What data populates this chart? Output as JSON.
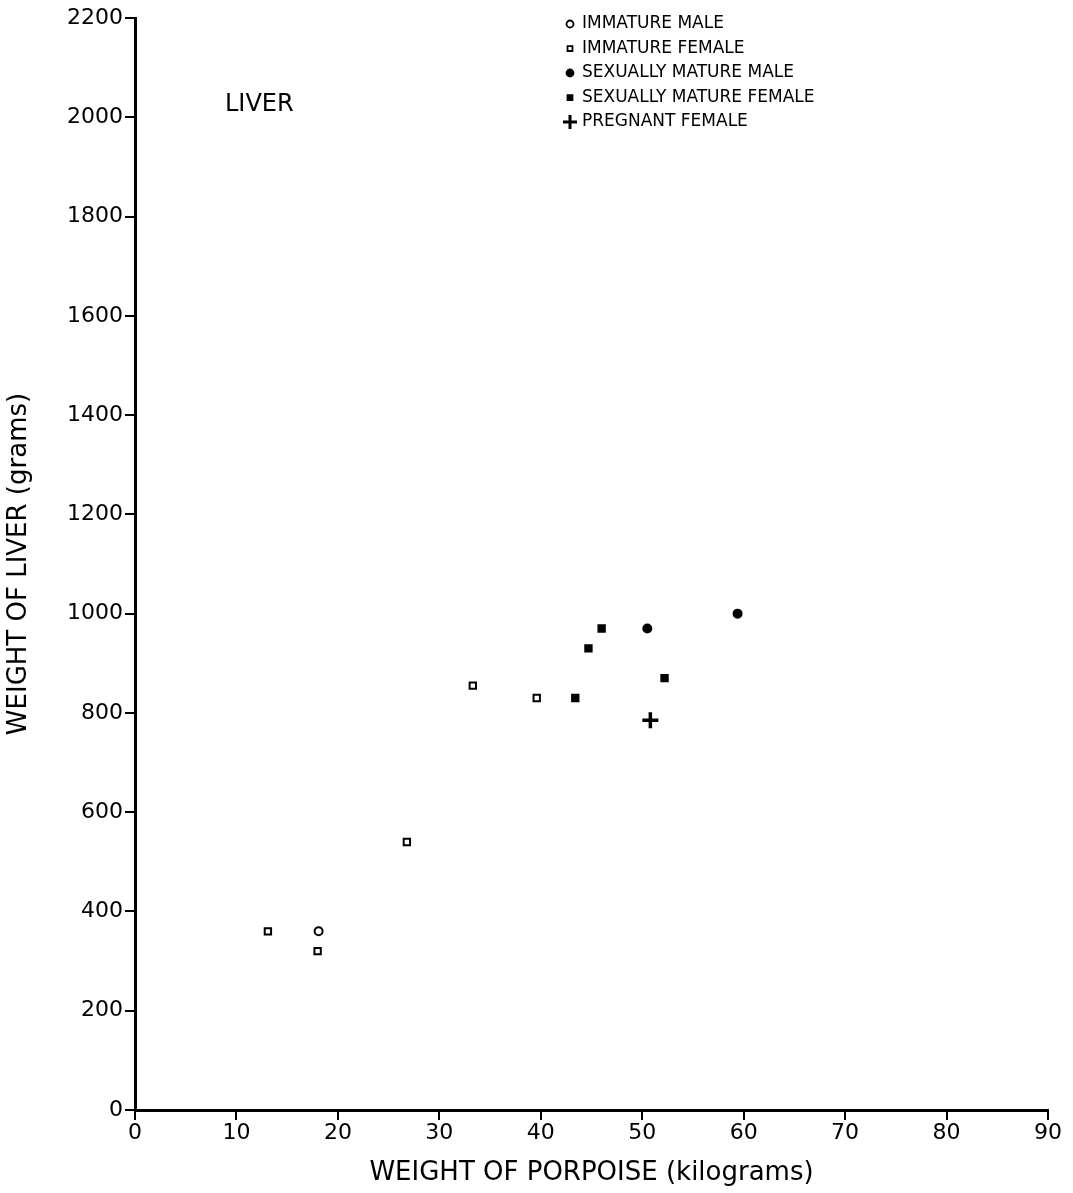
{
  "chart_data": {
    "type": "scatter",
    "title": "LIVER",
    "xlabel": "WEIGHT OF PORPOISE (kilograms)",
    "ylabel": "WEIGHT OF LIVER (grams)",
    "xlim": [
      0,
      90
    ],
    "xticks": [
      0,
      10,
      20,
      30,
      40,
      50,
      60,
      70,
      80,
      90
    ],
    "ylim": [
      0,
      2200
    ],
    "yticks": [
      0,
      200,
      400,
      600,
      800,
      1000,
      1200,
      1400,
      1600,
      1800,
      2000,
      2200
    ],
    "grid": false,
    "legend": "top right",
    "series": [
      {
        "name": "IMMATURE MALE",
        "color": "#000000",
        "marker": "circle-open",
        "x": [
          18.1
        ],
        "values": [
          360
        ]
      },
      {
        "name": "IMMATURE FEMALE",
        "color": "#000000",
        "marker": "square-open",
        "x": [
          13.1,
          18.0,
          26.8,
          33.3,
          39.6
        ],
        "values": [
          360,
          320,
          540,
          855,
          830
        ]
      },
      {
        "name": "SEXUALLY MATURE MALE",
        "color": "#000000",
        "marker": "circle",
        "x": [
          50.5,
          59.4
        ],
        "values": [
          970,
          1000
        ]
      },
      {
        "name": "SEXUALLY MATURE FEMALE",
        "color": "#000000",
        "marker": "square",
        "x": [
          43.4,
          44.7,
          46.0,
          52.2
        ],
        "values": [
          830,
          930,
          970,
          870
        ]
      },
      {
        "name": "PREGNANT FEMALE",
        "color": "#000000",
        "marker": "cross",
        "x": [
          50.8
        ],
        "values": [
          785
        ]
      }
    ]
  }
}
